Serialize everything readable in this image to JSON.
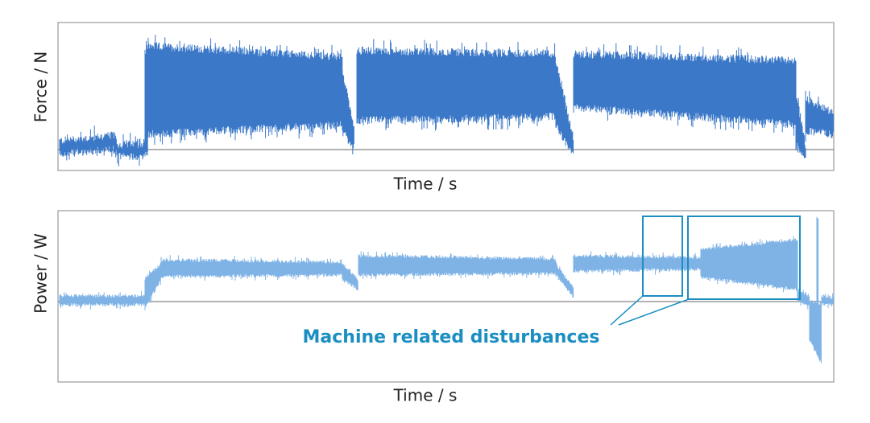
{
  "panels": [
    {
      "y_label": "Force / N",
      "x_label": "Time / s"
    },
    {
      "y_label": "Power / W",
      "x_label": "Time / s"
    }
  ],
  "annotation": "Machine related disturbances"
}
